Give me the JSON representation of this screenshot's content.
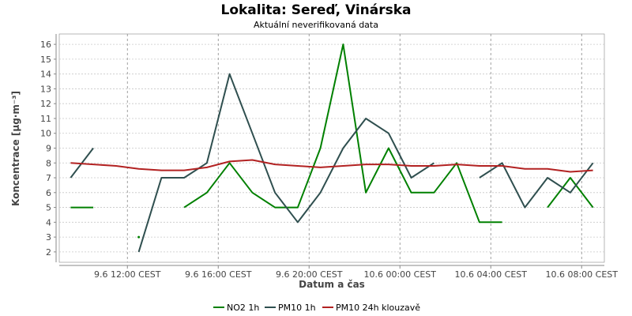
{
  "chart_data": {
    "type": "line",
    "title": "Lokalita: Sereď, Vinárska",
    "subtitle": "Aktuální neverifikovaná data",
    "xlabel": "Datum a čas",
    "ylabel": "Koncentrace [µg·m⁻³]",
    "ylim": [
      1.3,
      16.7
    ],
    "y_ticks": [
      2,
      3,
      4,
      5,
      6,
      7,
      8,
      9,
      10,
      11,
      12,
      13,
      14,
      15,
      16
    ],
    "x_start": "2024-06-09 09:00",
    "x_end": "2024-06-10 09:00",
    "x_ticks": [
      {
        "value": "2024-06-09 12:00",
        "label": "9.6 12:00 CEST"
      },
      {
        "value": "2024-06-09 16:00",
        "label": "9.6 16:00 CEST"
      },
      {
        "value": "2024-06-09 20:00",
        "label": "9.6 20:00 CEST"
      },
      {
        "value": "2024-06-10 00:00",
        "label": "10.6 00:00 CEST"
      },
      {
        "value": "2024-06-10 04:00",
        "label": "10.6 04:00 CEST"
      },
      {
        "value": "2024-06-10 08:00",
        "label": "10.6 08:00 CEST"
      }
    ],
    "x": [
      "2024-06-09 09:30",
      "2024-06-09 10:30",
      "2024-06-09 11:30",
      "2024-06-09 12:30",
      "2024-06-09 13:30",
      "2024-06-09 14:30",
      "2024-06-09 15:30",
      "2024-06-09 16:30",
      "2024-06-09 17:30",
      "2024-06-09 18:30",
      "2024-06-09 19:30",
      "2024-06-09 20:30",
      "2024-06-09 21:30",
      "2024-06-09 22:30",
      "2024-06-09 23:30",
      "2024-06-10 00:30",
      "2024-06-10 01:30",
      "2024-06-10 02:30",
      "2024-06-10 03:30",
      "2024-06-10 04:30",
      "2024-06-10 05:30",
      "2024-06-10 06:30",
      "2024-06-10 07:30",
      "2024-06-10 08:30"
    ],
    "grid": true,
    "legend_position": "bottom",
    "series": [
      {
        "name": "NO2 1h",
        "color": "#008000",
        "values": [
          5,
          5,
          null,
          3,
          null,
          5,
          6,
          8,
          6,
          5,
          5,
          9,
          16,
          6,
          9,
          6,
          6,
          8,
          4,
          4,
          null,
          5,
          7,
          5
        ]
      },
      {
        "name": "PM10 1h",
        "color": "#2f4f4f",
        "values": [
          7,
          9,
          null,
          2,
          7,
          7,
          8,
          14,
          10,
          6,
          4,
          6,
          9,
          11,
          10,
          7,
          8,
          null,
          7,
          8,
          5,
          7,
          6,
          8
        ]
      },
      {
        "name": "PM10 24h klouzavě",
        "color": "#b22222",
        "values": [
          8,
          7.9,
          7.8,
          7.6,
          7.5,
          7.5,
          7.7,
          8.1,
          8.2,
          7.9,
          7.8,
          7.7,
          7.8,
          7.9,
          7.9,
          7.8,
          7.8,
          7.9,
          7.8,
          7.8,
          7.6,
          7.6,
          7.4,
          7.5
        ]
      }
    ]
  }
}
